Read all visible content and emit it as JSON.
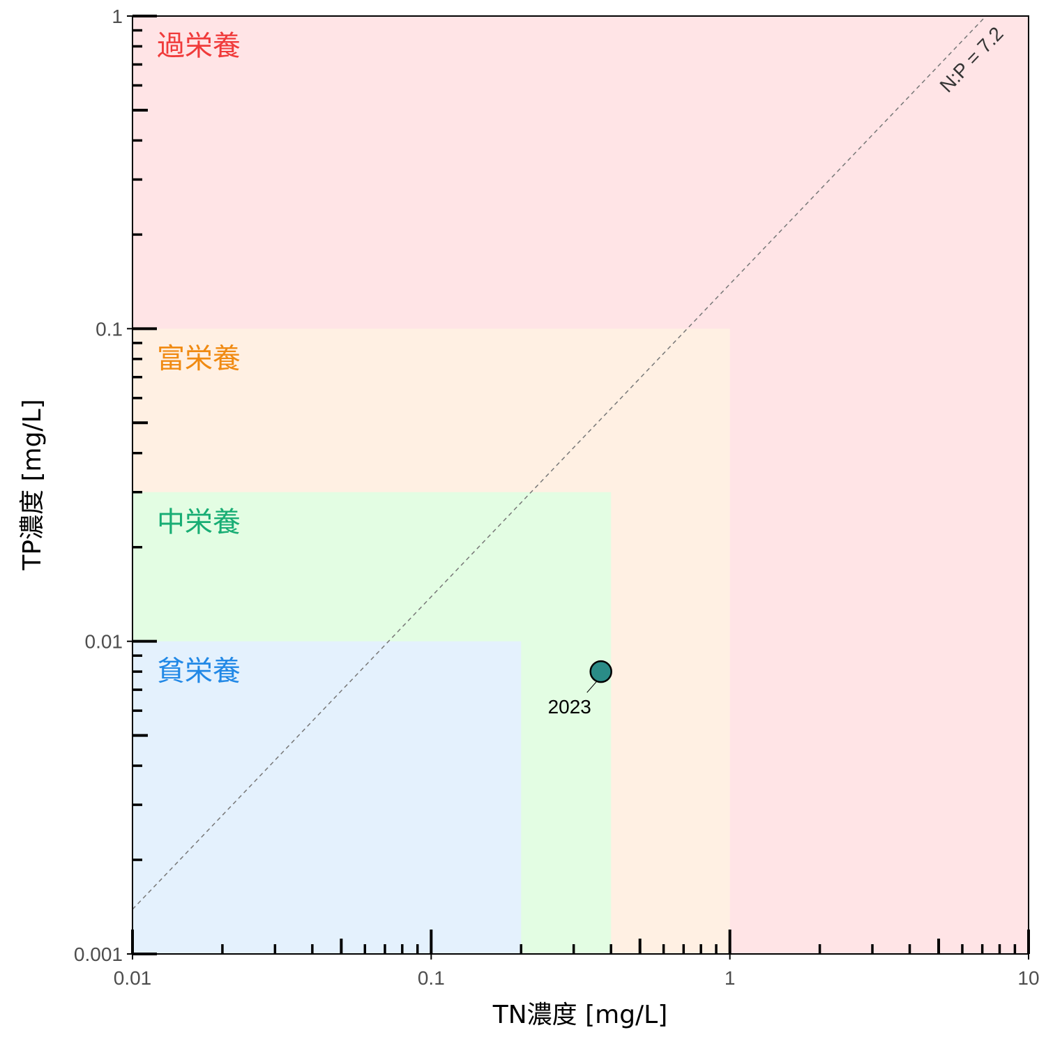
{
  "chart_data": {
    "type": "scatter",
    "xlabel": "TN濃度 [mg/L]",
    "ylabel": "TP濃度 [mg/L]",
    "x_scale": "log",
    "y_scale": "log",
    "xlim": [
      0.01,
      10
    ],
    "ylim": [
      0.001,
      1
    ],
    "x_ticks": [
      {
        "value": 0.01,
        "label": "0.01"
      },
      {
        "value": 0.1,
        "label": "0.1"
      },
      {
        "value": 1,
        "label": "1"
      },
      {
        "value": 10,
        "label": "10"
      }
    ],
    "y_ticks": [
      {
        "value": 0.001,
        "label": "0.001"
      },
      {
        "value": 0.01,
        "label": "0.01"
      },
      {
        "value": 0.1,
        "label": "0.1"
      },
      {
        "value": 1,
        "label": "1"
      }
    ],
    "grid": false,
    "zones": [
      {
        "label": "過栄養",
        "tn_max": 10,
        "tp_max": 1,
        "fill": "#ffe4e6",
        "label_color": "#f03a3a"
      },
      {
        "label": "富栄養",
        "tn_max": 1,
        "tp_max": 0.1,
        "fill": "#fff0e3",
        "label_color": "#f08a12"
      },
      {
        "label": "中栄養",
        "tn_max": 0.4,
        "tp_max": 0.03,
        "fill": "#e3fde3",
        "label_color": "#18ad74"
      },
      {
        "label": "貧栄養",
        "tn_max": 0.2,
        "tp_max": 0.01,
        "fill": "#e4f1fd",
        "label_color": "#2188e6"
      }
    ],
    "ratio_line": {
      "label": "N:P = 7.2",
      "ratio": 7.2,
      "color": "#777777"
    },
    "points": [
      {
        "label": "2023",
        "x": 0.37,
        "y": 0.008,
        "color": "#2a8c87"
      }
    ]
  }
}
